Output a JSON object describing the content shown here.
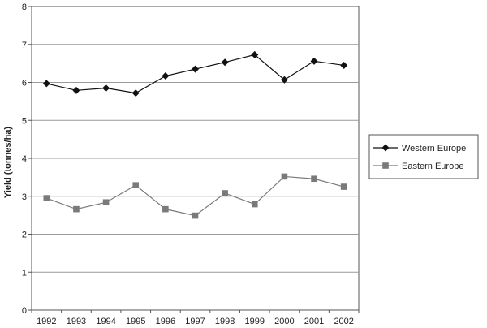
{
  "chart_data": {
    "type": "line",
    "title": "",
    "xlabel": "",
    "ylabel": "Yield (tonnes/ha)",
    "x": [
      "1992",
      "1993",
      "1994",
      "1995",
      "1996",
      "1997",
      "1998",
      "1999",
      "2000",
      "2001",
      "2002"
    ],
    "ylim": [
      0,
      8
    ],
    "yticks": [
      "0",
      "1",
      "2",
      "3",
      "4",
      "5",
      "6",
      "7",
      "8"
    ],
    "grid": "horizontal",
    "legend_position": "right",
    "series": [
      {
        "name": "Western Europe",
        "color": "#111111",
        "marker": "diamond",
        "values": [
          5.97,
          5.79,
          5.85,
          5.72,
          6.17,
          6.35,
          6.53,
          6.73,
          6.07,
          6.56,
          6.45
        ]
      },
      {
        "name": "Eastern Europe",
        "color": "#7a7a7a",
        "marker": "square",
        "values": [
          2.95,
          2.66,
          2.84,
          3.29,
          2.66,
          2.49,
          3.08,
          2.79,
          3.52,
          3.46,
          3.25
        ]
      }
    ]
  }
}
